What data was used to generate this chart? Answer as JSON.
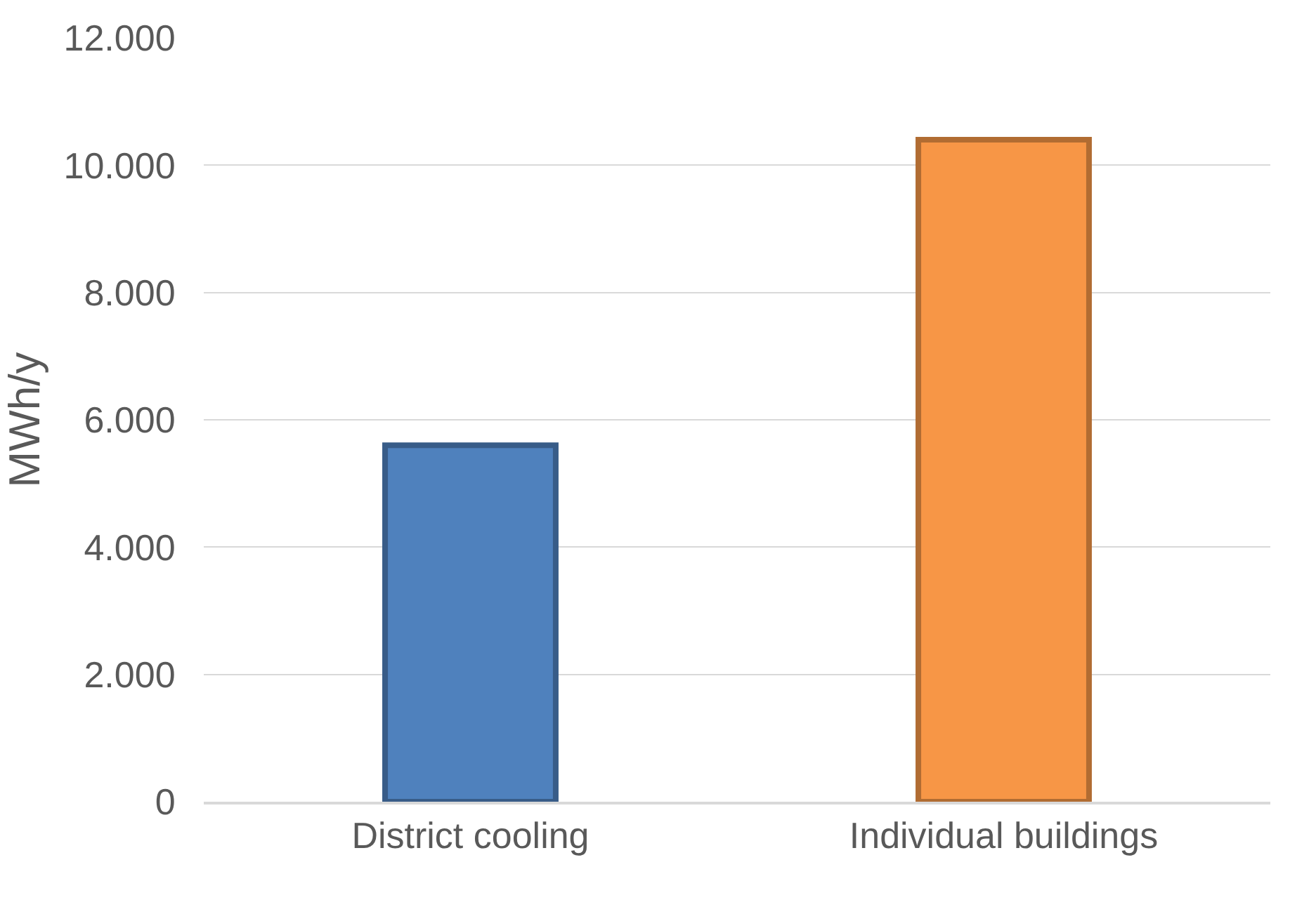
{
  "chart_data": {
    "type": "bar",
    "ylabel": "MWh/y",
    "categories": [
      "District cooling",
      "Individual buildings"
    ],
    "values": [
      5600,
      10400
    ],
    "colors": [
      "#4f81bd",
      "#f79646"
    ],
    "ylim": [
      0,
      12000
    ],
    "yticks": [
      0,
      {
        "value": 2000,
        "label": "2.000"
      },
      {
        "value": 4000,
        "label": "4.000"
      },
      {
        "value": 6000,
        "label": "6.000"
      },
      {
        "value": 8000,
        "label": "8.000"
      },
      {
        "value": 10000,
        "label": "10.000"
      },
      {
        "value": 12000,
        "label": "12.000"
      }
    ],
    "grid": "y"
  }
}
